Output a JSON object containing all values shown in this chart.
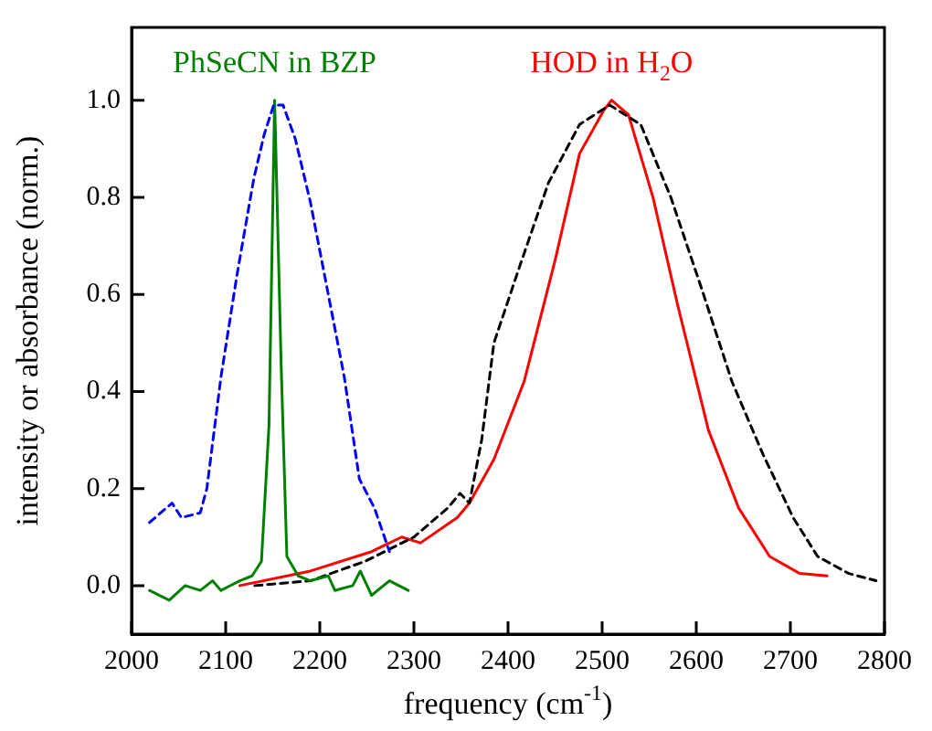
{
  "chart_data": {
    "type": "line",
    "xlabel": "frequency (cm$^{-1}$)",
    "ylabel": "intensity or absorbance (norm.)",
    "xlim": [
      2000,
      2800
    ],
    "ylim": [
      -0.1,
      1.15
    ],
    "xticks": [
      2000,
      2100,
      2200,
      2300,
      2400,
      2500,
      2600,
      2700,
      2800
    ],
    "yticks": [
      {
        "value": 0,
        "label": "0.0"
      },
      {
        "value": 0.2,
        "label": "0.2"
      },
      {
        "value": 0.4,
        "label": "0.4"
      },
      {
        "value": 0.6,
        "label": "0.6"
      },
      {
        "value": 0.8,
        "label": "0.8"
      },
      {
        "value": 1,
        "label": "1.0"
      }
    ],
    "grid": false,
    "legend": false,
    "marker": "none",
    "series": [
      {
        "color": "#0000ff",
        "line_style": "dashed",
        "x": [
          2019,
          2043,
          2053,
          2073,
          2080,
          2095,
          2112,
          2130,
          2141,
          2151,
          2161,
          2174,
          2190,
          2206,
          2226,
          2242,
          2258,
          2274
        ],
        "values": [
          0.13,
          0.17,
          0.14,
          0.15,
          0.2,
          0.43,
          0.64,
          0.84,
          0.93,
          0.99,
          0.99,
          0.92,
          0.79,
          0.63,
          0.43,
          0.22,
          0.16,
          0.07
        ]
      },
      {
        "name": "PhSeCN in BZP",
        "color": "#008000",
        "line_style": "solid",
        "x": [
          2019,
          2040,
          2057,
          2073,
          2086,
          2095,
          2115,
          2128,
          2138,
          2146,
          2152,
          2159,
          2165,
          2177,
          2190,
          2209,
          2216,
          2235,
          2243,
          2255,
          2274,
          2294
        ],
        "values": [
          -0.01,
          -0.03,
          0,
          -0.01,
          0.01,
          -0.01,
          0.01,
          0.02,
          0.05,
          0.33,
          1,
          0.45,
          0.06,
          0.02,
          0.01,
          0.02,
          -0.01,
          0,
          0.03,
          -0.02,
          0.01,
          -0.01
        ]
      },
      {
        "color": "#000000",
        "line_style": "dashed",
        "x": [
          2131,
          2190,
          2248,
          2300,
          2336,
          2349,
          2359,
          2372,
          2385,
          2411,
          2443,
          2476,
          2508,
          2541,
          2573,
          2606,
          2638,
          2671,
          2703,
          2729,
          2762,
          2791
        ],
        "values": [
          0,
          0.01,
          0.05,
          0.1,
          0.16,
          0.19,
          0.17,
          0.3,
          0.5,
          0.65,
          0.83,
          0.95,
          0.99,
          0.95,
          0.8,
          0.61,
          0.42,
          0.27,
          0.14,
          0.06,
          0.025,
          0.01
        ]
      },
      {
        "name": "HOD in H$_{2}$O",
        "color": "#ff0000",
        "line_style": "solid",
        "x": [
          2115,
          2190,
          2255,
          2287,
          2307,
          2346,
          2359,
          2385,
          2417,
          2450,
          2476,
          2502,
          2510,
          2528,
          2554,
          2580,
          2613,
          2645,
          2678,
          2710,
          2739
        ],
        "values": [
          0,
          0.03,
          0.07,
          0.1,
          0.088,
          0.14,
          0.17,
          0.26,
          0.42,
          0.67,
          0.89,
          0.98,
          1,
          0.97,
          0.8,
          0.58,
          0.32,
          0.16,
          0.06,
          0.025,
          0.02
        ]
      }
    ]
  }
}
